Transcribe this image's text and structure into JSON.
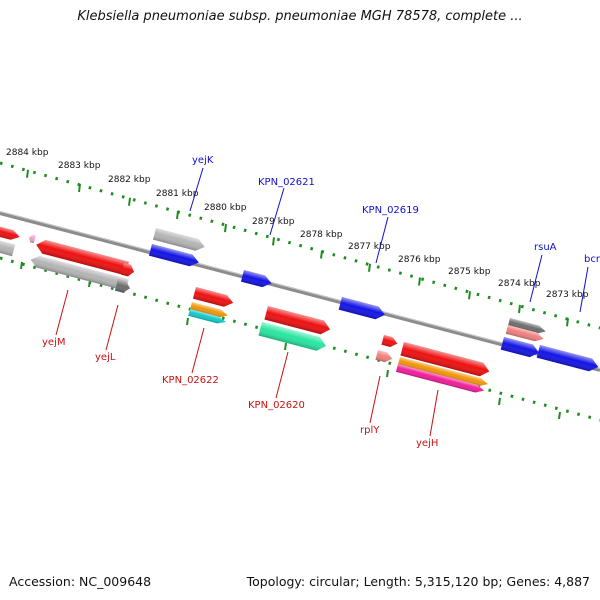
{
  "title": "Klebsiella pneumoniae subsp. pneumoniae MGH 78578, complete ...",
  "footer": {
    "accession": "Accession: NC_009648",
    "topology": "Topology: circular; Length: 5,315,120 bp; Genes: 4,887"
  },
  "colors": {
    "backbone": "#8c8c8c",
    "dots": "#1e8c1e",
    "upper_label": "#1010cc",
    "lower_label": "#cc1010",
    "red": "#ee1111",
    "blue": "#1414e6",
    "grey": "#b4b4b4",
    "darkgrey": "#6e6e6e",
    "pink": "#f08080",
    "orange": "#f0960a",
    "cyan": "#14c8c8",
    "mint": "#28e6a0",
    "magenta": "#f01e9b",
    "lightpink": "#f0a0c8"
  },
  "scale_ticks": [
    {
      "label": "2884 kbp"
    },
    {
      "label": "2883 kbp"
    },
    {
      "label": "2882 kbp"
    },
    {
      "label": "2881 kbp"
    },
    {
      "label": "2880 kbp"
    },
    {
      "label": "2879 kbp"
    },
    {
      "label": "2878 kbp"
    },
    {
      "label": "2877 kbp"
    },
    {
      "label": "2876 kbp"
    },
    {
      "label": "2875 kbp"
    },
    {
      "label": "2874 kbp"
    },
    {
      "label": "2873 kbp"
    }
  ],
  "upper_labels": [
    {
      "name": "yejK"
    },
    {
      "name": "KPN_02621"
    },
    {
      "name": "KPN_02619"
    },
    {
      "name": "rsuA"
    },
    {
      "name": "bcr"
    }
  ],
  "lower_labels": [
    {
      "name": "yejM"
    },
    {
      "name": "yejL"
    },
    {
      "name": "KPN_02622"
    },
    {
      "name": "KPN_02620"
    },
    {
      "name": "rplY"
    },
    {
      "name": "yejH"
    }
  ]
}
